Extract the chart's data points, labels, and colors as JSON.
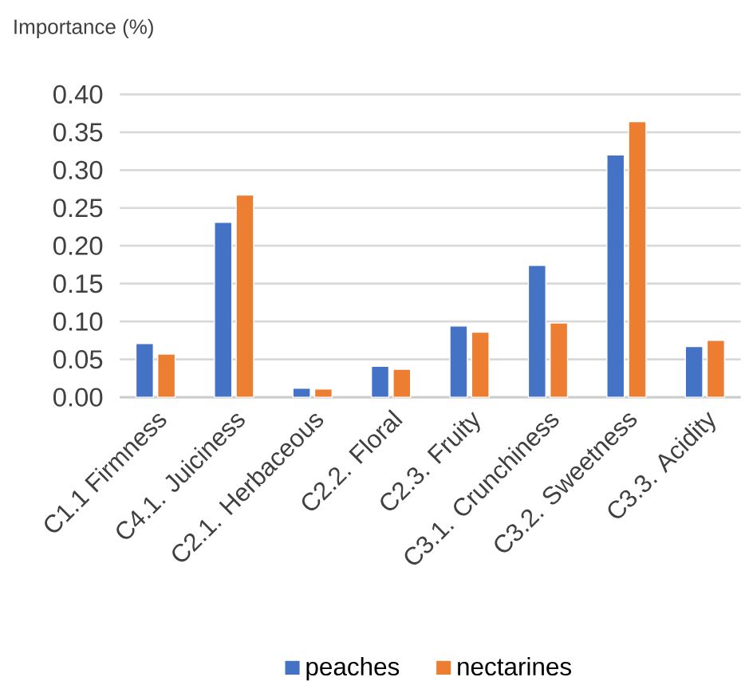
{
  "chart_data": {
    "type": "bar",
    "ylabel": "Importance (%)",
    "categories": [
      "C1.1 Firmness",
      "C4.1. Juiciness",
      "C2.1. Herbaceous",
      "C2.2. Floral",
      "C2.3. Fruity",
      "C3.1. Crunchiness",
      "C3.2. Sweetness",
      "C3.3. Acidity"
    ],
    "series": [
      {
        "name": "peaches",
        "color": "#4472c4",
        "values": [
          0.071,
          0.231,
          0.012,
          0.041,
          0.094,
          0.174,
          0.32,
          0.067
        ]
      },
      {
        "name": "nectarines",
        "color": "#ed7d31",
        "values": [
          0.057,
          0.267,
          0.011,
          0.037,
          0.086,
          0.098,
          0.364,
          0.075
        ]
      }
    ],
    "ylim": [
      0,
      0.4
    ],
    "yticks": [
      {
        "value": 0,
        "label": "0.00"
      },
      {
        "value": 0.05,
        "label": "0.05"
      },
      {
        "value": 0.1,
        "label": "0.10"
      },
      {
        "value": 0.15,
        "label": "0.15"
      },
      {
        "value": 0.2,
        "label": "0.20"
      },
      {
        "value": 0.25,
        "label": "0.25"
      },
      {
        "value": 0.3,
        "label": "0.30"
      },
      {
        "value": 0.35,
        "label": "0.35"
      },
      {
        "value": 0.4,
        "label": "0.40"
      }
    ],
    "grid": "y",
    "legend": "bottom"
  }
}
